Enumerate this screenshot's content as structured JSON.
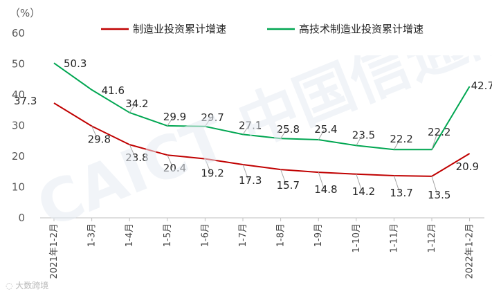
{
  "chart_data": {
    "type": "line",
    "ylabel": "（%）",
    "ylim": [
      0,
      60
    ],
    "yticks": [
      0,
      10,
      20,
      30,
      40,
      50,
      60
    ],
    "categories": [
      "2021年1-2月",
      "1-3月",
      "1-4月",
      "1-5月",
      "1-6月",
      "1-7月",
      "1-8月",
      "1-9月",
      "1-10月",
      "1-11月",
      "1-12月",
      "2022年1-2月"
    ],
    "series": [
      {
        "name": "制造业投资累计增速",
        "color": "#c00000",
        "values": [
          37.3,
          29.8,
          23.8,
          20.4,
          19.2,
          17.3,
          15.7,
          14.8,
          14.2,
          13.7,
          13.5,
          20.9
        ]
      },
      {
        "name": "高技术制造业投资累计增速",
        "color": "#00a651",
        "values": [
          50.3,
          41.6,
          34.2,
          29.9,
          29.7,
          27.1,
          25.8,
          25.4,
          23.5,
          22.2,
          22.2,
          42.7
        ]
      }
    ],
    "grid": false,
    "legend": "top"
  },
  "watermark": "CAICT 中国信通院",
  "credit": "大数跨境"
}
